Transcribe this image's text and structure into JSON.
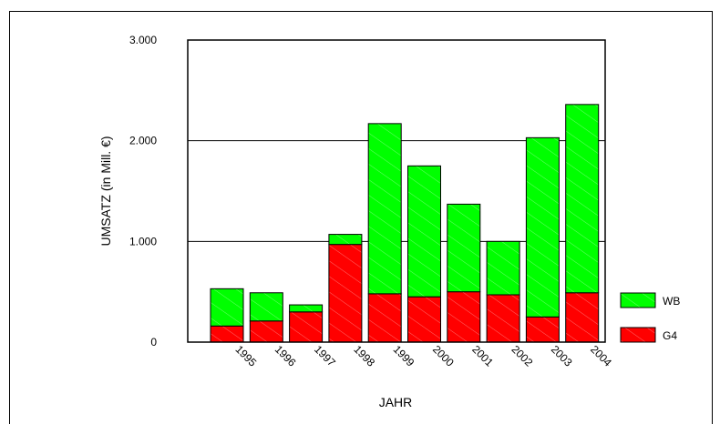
{
  "chart_data": {
    "type": "bar",
    "stacked": true,
    "categories": [
      "1995",
      "1996",
      "1997",
      "1998",
      "1999",
      "2000",
      "2001",
      "2002",
      "2003",
      "2004"
    ],
    "series": [
      {
        "name": "G4",
        "values": [
          160,
          210,
          300,
          970,
          480,
          450,
          500,
          470,
          250,
          490
        ],
        "color": "#ff0000"
      },
      {
        "name": "WB",
        "values": [
          370,
          280,
          70,
          100,
          1690,
          1300,
          870,
          530,
          1780,
          1870
        ],
        "color": "#00ff00"
      }
    ],
    "xlabel": "JAHR",
    "ylabel": "UMSATZ (in Mill. €)",
    "ylim": [
      0,
      3000
    ],
    "yticks": [
      0,
      1000,
      2000,
      3000
    ],
    "ytick_labels": [
      "0",
      "1.000",
      "2.000",
      "3.000"
    ],
    "grid": "horizontal",
    "legend_position": "right",
    "legend_order": [
      "WB",
      "G4"
    ]
  }
}
